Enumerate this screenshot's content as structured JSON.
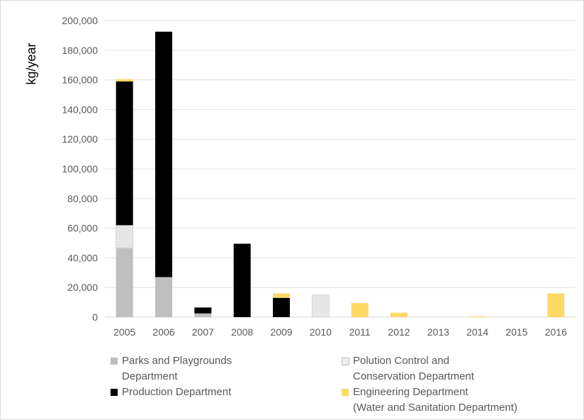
{
  "chart_data": {
    "type": "bar",
    "stacked": true,
    "ylabel": "kg/year",
    "ylim": [
      0,
      200000
    ],
    "yticks": [
      "0",
      "20,000",
      "40,000",
      "60,000",
      "80,000",
      "100,000",
      "120,000",
      "140,000",
      "160,000",
      "180,000",
      "200,000"
    ],
    "categories": [
      "2005",
      "2006",
      "2007",
      "2008",
      "2009",
      "2010",
      "2011",
      "2012",
      "2013",
      "2014",
      "2015",
      "2016"
    ],
    "grid": true,
    "legend_position": "bottom",
    "series": [
      {
        "name_line1": "Parks and Playgrounds",
        "name_line2": "Department",
        "color": "#bfbfbf",
        "pattern": "solid",
        "values": [
          46500,
          27000,
          2500,
          0,
          0,
          0,
          0,
          0,
          0,
          0,
          0,
          0
        ]
      },
      {
        "name_line1": "Polution Control and",
        "name_line2": "Conservation Department",
        "color": "#e6e6e6",
        "pattern": "dots",
        "values": [
          15500,
          0,
          0,
          0,
          0,
          15000,
          0,
          0,
          0,
          0,
          0,
          0
        ]
      },
      {
        "name_line1": "Production Department",
        "name_line2": "",
        "color": "#000000",
        "pattern": "solid",
        "values": [
          97000,
          165500,
          4000,
          49500,
          13000,
          0,
          0,
          0,
          0,
          0,
          0,
          0
        ]
      },
      {
        "name_line1": "Engineering Department",
        "name_line2": "(Water and Sanitation Department)",
        "color": "#ffd966",
        "pattern": "solid",
        "values": [
          1500,
          0,
          0,
          0,
          3000,
          0,
          9500,
          3000,
          0,
          500,
          0,
          16000
        ]
      }
    ]
  }
}
